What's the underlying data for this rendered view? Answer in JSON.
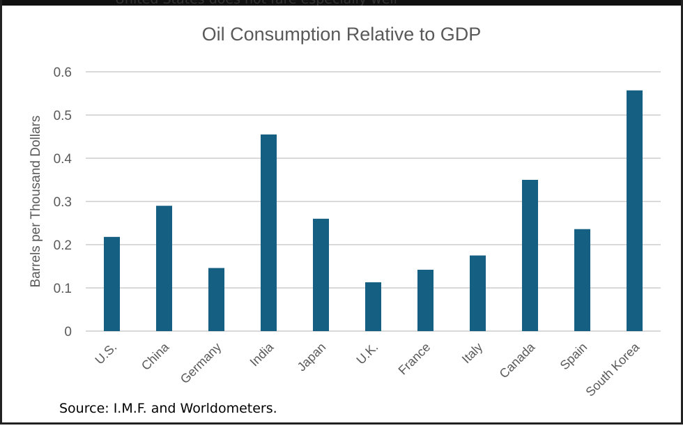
{
  "context_text": "United States does not fare especially well",
  "source": "Source: I.M.F. and Worldometers.",
  "chart_data": {
    "type": "bar",
    "title": "Oil Consumption Relative to GDP",
    "xlabel": "",
    "ylabel": "Barrels per Thousand Dollars",
    "ylim": [
      0,
      0.6
    ],
    "yticks": [
      "0",
      "0.1",
      "0.2",
      "0.3",
      "0.4",
      "0.5",
      "0.6"
    ],
    "grid": true,
    "categories": [
      "U.S.",
      "China",
      "Germany",
      "India",
      "Japan",
      "U.K.",
      "France",
      "Italy",
      "Canada",
      "Spain",
      "South Korea"
    ],
    "values": [
      0.218,
      0.29,
      0.146,
      0.455,
      0.26,
      0.113,
      0.142,
      0.175,
      0.35,
      0.236,
      0.557
    ],
    "bar_color": "#155f82"
  }
}
